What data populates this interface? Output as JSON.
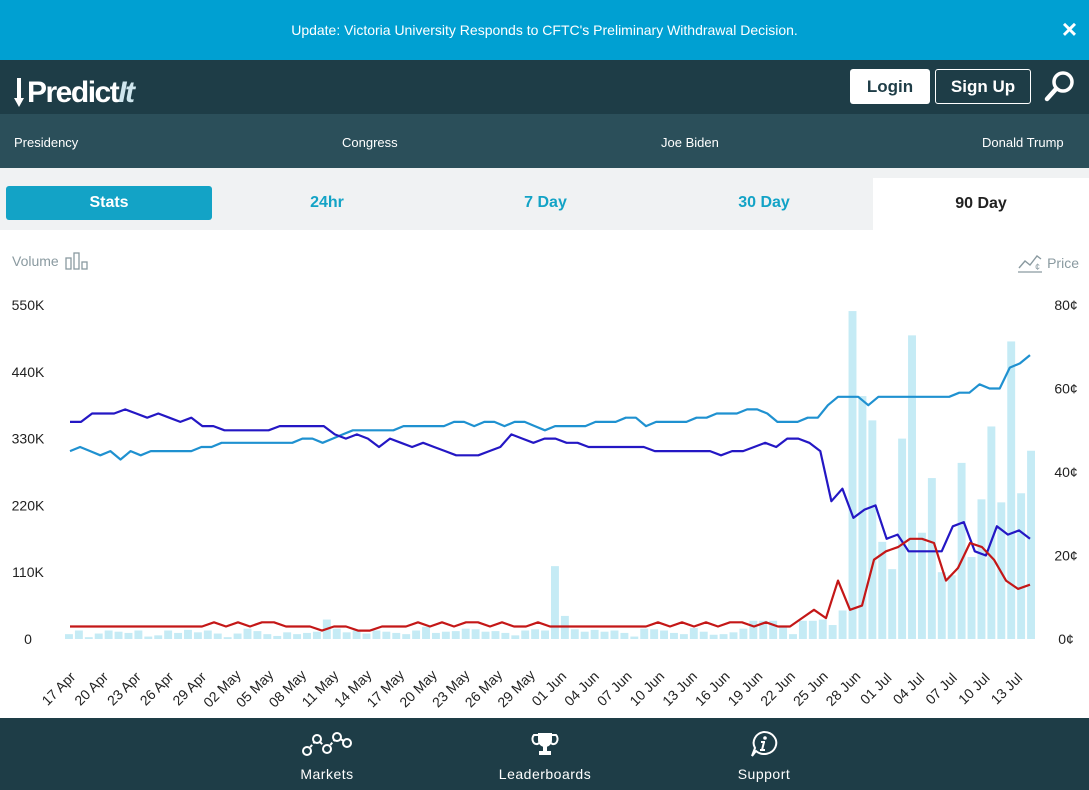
{
  "banner": {
    "text": "Update: Victoria University Responds to CFTC's Preliminary Withdrawal Decision.",
    "close": "×"
  },
  "header": {
    "logo_main": "Predict",
    "logo_accent": "It",
    "login": "Login",
    "signup": "Sign Up"
  },
  "nav": {
    "items": [
      "Presidency",
      "Congress",
      "Joe Biden",
      "Donald Trump"
    ]
  },
  "tabs": {
    "stats": "Stats",
    "t24": "24hr",
    "t7": "7 Day",
    "t30": "30 Day",
    "t90": "90 Day"
  },
  "legend": {
    "volume": "Volume",
    "price": "Price"
  },
  "footer": {
    "markets": "Markets",
    "leaderboards": "Leaderboards",
    "support": "Support"
  },
  "colors": {
    "accent": "#13a3c6",
    "header": "#1e3d47",
    "nav": "#2b4f5a",
    "banner": "#00a0d2",
    "volume_bar": "#c5ebf5",
    "series_lightblue": "#1f91d0",
    "series_darkblue": "#2417c4",
    "series_red": "#c41717"
  },
  "chart_data": {
    "type": "bar+line",
    "left_axis": {
      "label": "Volume",
      "ticks": [
        "0",
        "110K",
        "220K",
        "330K",
        "440K",
        "550K"
      ],
      "ylim": [
        0,
        550000
      ]
    },
    "right_axis": {
      "label": "Price",
      "ticks": [
        "0¢",
        "20¢",
        "40¢",
        "60¢",
        "80¢"
      ],
      "ylim": [
        0,
        80
      ]
    },
    "x_tick_labels": [
      "17 Apr",
      "20 Apr",
      "23 Apr",
      "26 Apr",
      "29 Apr",
      "02 May",
      "05 May",
      "08 May",
      "11 May",
      "14 May",
      "17 May",
      "20 May",
      "23 May",
      "26 May",
      "29 May",
      "01 Jun",
      "04 Jun",
      "07 Jun",
      "10 Jun",
      "13 Jun",
      "16 Jun",
      "19 Jun",
      "22 Jun",
      "25 Jun",
      "28 Jun",
      "01 Jul",
      "04 Jul",
      "07 Jul",
      "10 Jul",
      "13 Jul"
    ],
    "volume": [
      8000,
      14000,
      3000,
      9000,
      14000,
      12000,
      10000,
      14000,
      4000,
      6000,
      14000,
      10000,
      15000,
      11000,
      14000,
      9000,
      3000,
      9000,
      17000,
      13000,
      8000,
      5000,
      11000,
      8000,
      10000,
      12000,
      32000,
      17000,
      11000,
      14000,
      9000,
      14000,
      12000,
      10000,
      8000,
      14000,
      20000,
      10000,
      12000,
      13000,
      17000,
      16000,
      12000,
      13000,
      10000,
      6000,
      14000,
      16000,
      14000,
      120000,
      38000,
      16000,
      12000,
      15000,
      12000,
      14000,
      10000,
      4000,
      17000,
      16000,
      14000,
      10000,
      8000,
      18000,
      12000,
      7000,
      8000,
      11000,
      17000,
      30000,
      30000,
      30000,
      19000,
      8000,
      30000,
      30000,
      32000,
      23000,
      47000,
      540000,
      400000,
      360000,
      160000,
      115000,
      330000,
      500000,
      175000,
      265000,
      110000,
      105000,
      290000,
      135000,
      230000,
      350000,
      225000,
      490000,
      240000,
      310000
    ],
    "series": [
      {
        "name": "",
        "color": "series_lightblue",
        "values": [
          45,
          46,
          45,
          44,
          45,
          43,
          45,
          44,
          45,
          45,
          45,
          45,
          45,
          46,
          46,
          47,
          47,
          47,
          47,
          47,
          47,
          47,
          47,
          48,
          48,
          47,
          48,
          49,
          50,
          50,
          50,
          50,
          50,
          51,
          51,
          51,
          51,
          51,
          52,
          52,
          51,
          52,
          52,
          51,
          52,
          52,
          51,
          50,
          51,
          51,
          51,
          51,
          52,
          52,
          52,
          53,
          53,
          51,
          52,
          52,
          52,
          52,
          53,
          53,
          54,
          54,
          54,
          55,
          55,
          54,
          52,
          52,
          52,
          53,
          53,
          56,
          58,
          58,
          58,
          56,
          58,
          58,
          58,
          58,
          58,
          58,
          58,
          58,
          59,
          59,
          61,
          60,
          60,
          65,
          66,
          68
        ]
      },
      {
        "name": "",
        "color": "series_darkblue",
        "values": [
          52,
          52,
          54,
          54,
          54,
          55,
          54,
          53,
          54,
          53,
          52,
          53,
          51,
          51,
          50,
          50,
          50,
          50,
          50,
          51,
          51,
          51,
          51,
          51,
          49,
          48,
          49,
          48,
          46,
          48,
          47,
          46,
          47,
          46,
          45,
          44,
          44,
          44,
          45,
          46,
          49,
          48,
          47,
          48,
          48,
          47,
          47,
          46,
          46,
          46,
          46,
          46,
          46,
          45,
          45,
          45,
          45,
          45,
          45,
          44,
          45,
          45,
          46,
          47,
          46,
          48,
          48,
          47,
          45,
          33,
          36,
          29,
          31,
          32,
          24,
          25,
          21,
          21,
          21,
          21,
          27,
          28,
          21,
          20,
          27,
          25,
          26,
          24
        ]
      },
      {
        "name": "",
        "color": "series_red",
        "values": [
          3,
          3,
          3,
          3,
          3,
          3,
          3,
          3,
          3,
          3,
          3,
          3,
          4,
          3,
          4,
          3,
          4,
          4,
          3,
          3,
          3,
          2,
          3,
          3,
          2,
          2,
          3,
          3,
          3,
          4,
          3,
          4,
          3,
          4,
          4,
          3,
          4,
          3,
          3,
          4,
          3,
          3,
          3,
          3,
          3,
          3,
          3,
          3,
          3,
          4,
          3,
          4,
          3,
          4,
          3,
          4,
          4,
          3,
          4,
          3,
          3,
          5,
          7,
          5,
          14,
          7,
          8,
          19,
          21,
          22,
          24,
          24,
          23,
          14,
          17,
          23,
          22,
          19,
          14,
          12,
          13
        ]
      }
    ]
  }
}
